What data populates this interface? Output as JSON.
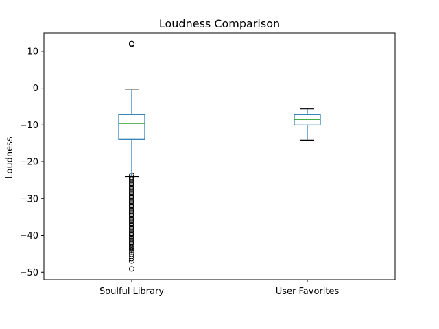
{
  "chart_data": {
    "type": "box",
    "title": "Loudness Comparison",
    "xlabel": "",
    "ylabel": "Loudness",
    "ylim": [
      -52,
      15
    ],
    "yticks": [
      10,
      0,
      -10,
      -20,
      -30,
      -40,
      -50
    ],
    "grid": false,
    "legend": "none",
    "categories": [
      "Soulful Library",
      "User Favorites"
    ],
    "boxes": [
      {
        "label": "Soulful Library",
        "whisker_high": -0.5,
        "q3": -7.2,
        "median": -9.6,
        "q1": -13.9,
        "whisker_low": -24.0,
        "outliers": [
          12.1,
          11.9,
          -23.7,
          -24.2,
          -24.6,
          -25.0,
          -25.4,
          -25.8,
          -26.2,
          -26.6,
          -27.0,
          -27.4,
          -27.8,
          -28.2,
          -28.6,
          -29.0,
          -29.4,
          -29.8,
          -30.2,
          -30.6,
          -31.0,
          -31.4,
          -31.8,
          -32.2,
          -32.6,
          -33.0,
          -33.4,
          -33.8,
          -34.2,
          -34.6,
          -35.0,
          -35.4,
          -35.8,
          -36.2,
          -36.6,
          -37.0,
          -37.4,
          -37.8,
          -38.2,
          -38.6,
          -39.0,
          -39.4,
          -39.8,
          -40.2,
          -40.6,
          -41.0,
          -41.4,
          -41.8,
          -42.2,
          -42.6,
          -43.0,
          -43.5,
          -44.0,
          -44.5,
          -45.0,
          -45.6,
          -46.3,
          -46.9,
          -49.1
        ]
      },
      {
        "label": "User Favorites",
        "whisker_high": -5.6,
        "q3": -7.2,
        "median": -8.5,
        "q1": -10.0,
        "whisker_low": -14.1,
        "outliers": []
      }
    ],
    "colors": {
      "box": "#1f77b4",
      "median": "#2ca02c",
      "whisker_cap": "#000000",
      "outlier": "#000000"
    }
  }
}
